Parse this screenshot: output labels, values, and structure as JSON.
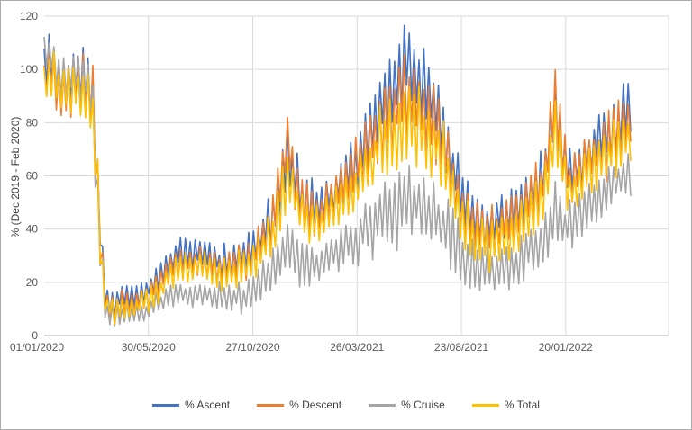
{
  "window": {
    "background": "#ffffff",
    "frame_border_color": "#ababab"
  },
  "chart_data": {
    "type": "line",
    "title": "",
    "xlabel": "",
    "ylabel": "% (Dec 2019 - Feb 2020)",
    "ylim": [
      0,
      120
    ],
    "y_ticks": [
      0,
      20,
      40,
      60,
      80,
      100,
      120
    ],
    "x_ticks": [
      {
        "day": 0,
        "label": "01/01/2020"
      },
      {
        "day": 150,
        "label": "30/05/2020"
      },
      {
        "day": 300,
        "label": "27/10/2020"
      },
      {
        "day": 450,
        "label": "26/03/2021"
      },
      {
        "day": 600,
        "label": "23/08/2021"
      },
      {
        "day": 750,
        "label": "20/01/2022"
      }
    ],
    "x_range_days": [
      0,
      898
    ],
    "last_data_day": 845,
    "sample_step_days": 3.5,
    "grid": {
      "horizontal": true,
      "vertical": true,
      "color": "#d9d9d9",
      "axis_line_color": "#ababab"
    },
    "axis_text_color": "#595959",
    "legend": {
      "position": "bottom",
      "entries": [
        "% Ascent",
        "% Descent",
        "% Cruise",
        "% Total"
      ]
    },
    "oscillation_amplitude": [
      [
        0,
        8
      ],
      [
        30,
        8
      ],
      [
        60,
        9
      ],
      [
        74,
        14
      ],
      [
        88,
        4
      ],
      [
        120,
        4
      ],
      [
        160,
        4
      ],
      [
        200,
        5
      ],
      [
        250,
        5
      ],
      [
        300,
        6
      ],
      [
        330,
        8
      ],
      [
        350,
        10
      ],
      [
        370,
        8
      ],
      [
        400,
        7
      ],
      [
        430,
        8
      ],
      [
        460,
        10
      ],
      [
        490,
        12
      ],
      [
        520,
        14
      ],
      [
        550,
        12
      ],
      [
        580,
        11
      ],
      [
        610,
        9
      ],
      [
        640,
        8
      ],
      [
        670,
        8
      ],
      [
        700,
        8
      ],
      [
        722,
        9
      ],
      [
        735,
        10
      ],
      [
        750,
        8
      ],
      [
        780,
        9
      ],
      [
        810,
        9
      ],
      [
        845,
        9
      ]
    ],
    "series": [
      {
        "name": "% Ascent",
        "color": "#4472C4",
        "seed": 11,
        "amp_scale": 1.0,
        "trend": [
          [
            0,
            100
          ],
          [
            8,
            104
          ],
          [
            20,
            96
          ],
          [
            32,
            94
          ],
          [
            45,
            98
          ],
          [
            58,
            96
          ],
          [
            68,
            92
          ],
          [
            74,
            75
          ],
          [
            80,
            40
          ],
          [
            88,
            14
          ],
          [
            100,
            12
          ],
          [
            115,
            15
          ],
          [
            130,
            14
          ],
          [
            150,
            17
          ],
          [
            165,
            22
          ],
          [
            180,
            27
          ],
          [
            195,
            31
          ],
          [
            210,
            30
          ],
          [
            225,
            32
          ],
          [
            240,
            29
          ],
          [
            255,
            28
          ],
          [
            270,
            29
          ],
          [
            285,
            30
          ],
          [
            300,
            33
          ],
          [
            315,
            38
          ],
          [
            330,
            46
          ],
          [
            342,
            58
          ],
          [
            350,
            68
          ],
          [
            358,
            60
          ],
          [
            370,
            52
          ],
          [
            385,
            48
          ],
          [
            400,
            50
          ],
          [
            415,
            53
          ],
          [
            430,
            58
          ],
          [
            445,
            64
          ],
          [
            460,
            72
          ],
          [
            475,
            80
          ],
          [
            490,
            86
          ],
          [
            505,
            94
          ],
          [
            520,
            104
          ],
          [
            532,
            97
          ],
          [
            545,
            93
          ],
          [
            558,
            88
          ],
          [
            570,
            84
          ],
          [
            582,
            70
          ],
          [
            595,
            58
          ],
          [
            608,
            47
          ],
          [
            620,
            44
          ],
          [
            635,
            42
          ],
          [
            650,
            43
          ],
          [
            665,
            45
          ],
          [
            680,
            48
          ],
          [
            695,
            51
          ],
          [
            710,
            56
          ],
          [
            722,
            64
          ],
          [
            735,
            82
          ],
          [
            745,
            70
          ],
          [
            755,
            62
          ],
          [
            765,
            63
          ],
          [
            778,
            67
          ],
          [
            790,
            70
          ],
          [
            805,
            74
          ],
          [
            820,
            80
          ],
          [
            845,
            88
          ]
        ]
      },
      {
        "name": "% Descent",
        "color": "#ED7D31",
        "seed": 23,
        "amp_scale": 1.0,
        "trend": [
          [
            0,
            98
          ],
          [
            8,
            101
          ],
          [
            20,
            93
          ],
          [
            32,
            91
          ],
          [
            45,
            95
          ],
          [
            58,
            93
          ],
          [
            68,
            89
          ],
          [
            74,
            72
          ],
          [
            80,
            37
          ],
          [
            88,
            12
          ],
          [
            100,
            10
          ],
          [
            115,
            13
          ],
          [
            130,
            12
          ],
          [
            150,
            15
          ],
          [
            165,
            19
          ],
          [
            180,
            24
          ],
          [
            195,
            28
          ],
          [
            210,
            27
          ],
          [
            225,
            29
          ],
          [
            240,
            26
          ],
          [
            255,
            25
          ],
          [
            270,
            26
          ],
          [
            285,
            27
          ],
          [
            300,
            30
          ],
          [
            315,
            35
          ],
          [
            330,
            44
          ],
          [
            342,
            60
          ],
          [
            350,
            74
          ],
          [
            358,
            62
          ],
          [
            370,
            50
          ],
          [
            385,
            46
          ],
          [
            400,
            48
          ],
          [
            415,
            51
          ],
          [
            430,
            56
          ],
          [
            445,
            61
          ],
          [
            460,
            68
          ],
          [
            475,
            75
          ],
          [
            490,
            80
          ],
          [
            505,
            86
          ],
          [
            520,
            90
          ],
          [
            532,
            88
          ],
          [
            545,
            85
          ],
          [
            558,
            80
          ],
          [
            570,
            76
          ],
          [
            582,
            64
          ],
          [
            595,
            53
          ],
          [
            608,
            43
          ],
          [
            620,
            40
          ],
          [
            635,
            38
          ],
          [
            650,
            40
          ],
          [
            665,
            42
          ],
          [
            680,
            45
          ],
          [
            695,
            48
          ],
          [
            710,
            54
          ],
          [
            722,
            64
          ],
          [
            735,
            92
          ],
          [
            745,
            68
          ],
          [
            755,
            59
          ],
          [
            765,
            60
          ],
          [
            778,
            64
          ],
          [
            790,
            67
          ],
          [
            805,
            70
          ],
          [
            820,
            75
          ],
          [
            845,
            82
          ]
        ]
      },
      {
        "name": "% Cruise",
        "color": "#A5A5A5",
        "seed": 37,
        "amp_scale": 0.85,
        "trend": [
          [
            0,
            104
          ],
          [
            8,
            105
          ],
          [
            20,
            98
          ],
          [
            32,
            96
          ],
          [
            45,
            99
          ],
          [
            58,
            96
          ],
          [
            68,
            90
          ],
          [
            74,
            70
          ],
          [
            80,
            32
          ],
          [
            88,
            8
          ],
          [
            100,
            7
          ],
          [
            115,
            9
          ],
          [
            130,
            8
          ],
          [
            150,
            10
          ],
          [
            165,
            12
          ],
          [
            180,
            14
          ],
          [
            195,
            16
          ],
          [
            210,
            15
          ],
          [
            225,
            17
          ],
          [
            240,
            15
          ],
          [
            255,
            14
          ],
          [
            270,
            14
          ],
          [
            285,
            15
          ],
          [
            300,
            17
          ],
          [
            315,
            20
          ],
          [
            330,
            25
          ],
          [
            342,
            30
          ],
          [
            350,
            34
          ],
          [
            358,
            31
          ],
          [
            370,
            28
          ],
          [
            385,
            26
          ],
          [
            400,
            28
          ],
          [
            415,
            30
          ],
          [
            430,
            33
          ],
          [
            445,
            36
          ],
          [
            460,
            40
          ],
          [
            475,
            43
          ],
          [
            490,
            45
          ],
          [
            505,
            48
          ],
          [
            520,
            50
          ],
          [
            532,
            49
          ],
          [
            545,
            47
          ],
          [
            558,
            45
          ],
          [
            570,
            43
          ],
          [
            582,
            38
          ],
          [
            595,
            33
          ],
          [
            608,
            27
          ],
          [
            620,
            25
          ],
          [
            635,
            24
          ],
          [
            650,
            25
          ],
          [
            665,
            26
          ],
          [
            680,
            28
          ],
          [
            695,
            31
          ],
          [
            710,
            34
          ],
          [
            722,
            38
          ],
          [
            735,
            48
          ],
          [
            745,
            42
          ],
          [
            755,
            42
          ],
          [
            765,
            44
          ],
          [
            778,
            47
          ],
          [
            790,
            50
          ],
          [
            805,
            54
          ],
          [
            820,
            58
          ],
          [
            845,
            62
          ]
        ]
      },
      {
        "name": "% Total",
        "color": "#FFC000",
        "seed": 51,
        "amp_scale": 0.95,
        "trend": [
          [
            0,
            97
          ],
          [
            8,
            99
          ],
          [
            20,
            92
          ],
          [
            32,
            90
          ],
          [
            45,
            93
          ],
          [
            58,
            91
          ],
          [
            68,
            87
          ],
          [
            74,
            70
          ],
          [
            80,
            35
          ],
          [
            88,
            11
          ],
          [
            100,
            9
          ],
          [
            115,
            12
          ],
          [
            130,
            11
          ],
          [
            150,
            14
          ],
          [
            165,
            17
          ],
          [
            180,
            22
          ],
          [
            195,
            26
          ],
          [
            210,
            25
          ],
          [
            225,
            27
          ],
          [
            240,
            24
          ],
          [
            255,
            23
          ],
          [
            270,
            24
          ],
          [
            285,
            25
          ],
          [
            300,
            28
          ],
          [
            315,
            32
          ],
          [
            330,
            40
          ],
          [
            342,
            52
          ],
          [
            350,
            62
          ],
          [
            358,
            54
          ],
          [
            370,
            46
          ],
          [
            385,
            42
          ],
          [
            400,
            44
          ],
          [
            415,
            47
          ],
          [
            430,
            51
          ],
          [
            445,
            56
          ],
          [
            460,
            62
          ],
          [
            475,
            68
          ],
          [
            490,
            73
          ],
          [
            505,
            78
          ],
          [
            520,
            82
          ],
          [
            532,
            80
          ],
          [
            545,
            77
          ],
          [
            558,
            73
          ],
          [
            570,
            69
          ],
          [
            582,
            58
          ],
          [
            595,
            48
          ],
          [
            608,
            39
          ],
          [
            620,
            36
          ],
          [
            635,
            34
          ],
          [
            650,
            36
          ],
          [
            665,
            38
          ],
          [
            680,
            41
          ],
          [
            695,
            44
          ],
          [
            710,
            49
          ],
          [
            722,
            57
          ],
          [
            735,
            78
          ],
          [
            745,
            62
          ],
          [
            755,
            54
          ],
          [
            765,
            55
          ],
          [
            778,
            59
          ],
          [
            790,
            62
          ],
          [
            805,
            66
          ],
          [
            820,
            70
          ],
          [
            845,
            76
          ]
        ]
      }
    ]
  }
}
